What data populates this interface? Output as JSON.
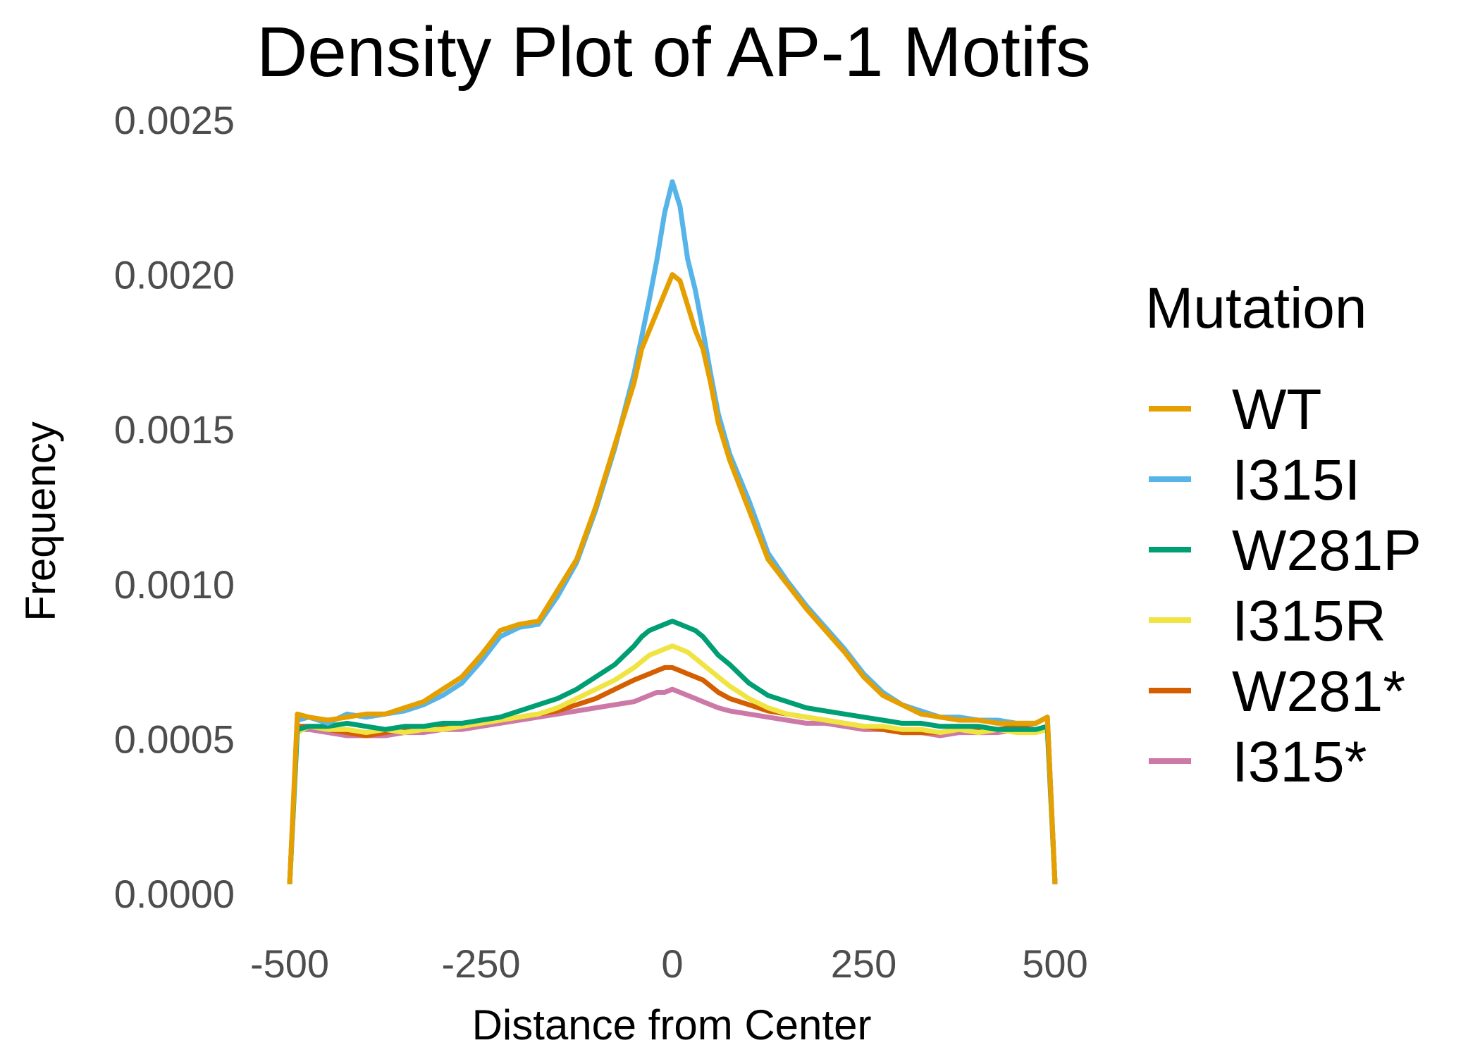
{
  "chart_data": {
    "type": "line",
    "title": "Density Plot of AP-1 Motifs",
    "xlabel": "Distance from Center",
    "ylabel": "Frequency",
    "xlim": [
      -500,
      500
    ],
    "ylim": [
      0,
      0.0025
    ],
    "x_ticks": [
      "-500",
      "-250",
      "0",
      "250",
      "500"
    ],
    "y_ticks": [
      "0.0000",
      "0.0005",
      "0.0010",
      "0.0015",
      "0.0020",
      "0.0025"
    ],
    "grid": false,
    "legend": {
      "title": "Mutation",
      "position": "right"
    },
    "x": [
      -500,
      -490,
      -475,
      -450,
      -425,
      -400,
      -375,
      -350,
      -325,
      -300,
      -275,
      -250,
      -225,
      -200,
      -175,
      -150,
      -125,
      -100,
      -75,
      -50,
      -40,
      -30,
      -20,
      -10,
      0,
      10,
      20,
      30,
      40,
      50,
      60,
      75,
      100,
      125,
      150,
      175,
      200,
      225,
      250,
      275,
      300,
      325,
      350,
      375,
      400,
      425,
      450,
      475,
      490,
      500
    ],
    "series": [
      {
        "name": "WT",
        "color": "#E69F00",
        "values": [
          3e-05,
          0.00058,
          0.00057,
          0.00056,
          0.00057,
          0.00058,
          0.00058,
          0.0006,
          0.00062,
          0.00066,
          0.0007,
          0.00077,
          0.00085,
          0.00087,
          0.00088,
          0.00098,
          0.00108,
          0.00125,
          0.00145,
          0.00165,
          0.00176,
          0.00182,
          0.00188,
          0.00194,
          0.002,
          0.00198,
          0.0019,
          0.00182,
          0.00176,
          0.00165,
          0.00152,
          0.0014,
          0.00124,
          0.00108,
          0.001,
          0.00092,
          0.00085,
          0.00078,
          0.0007,
          0.00064,
          0.00061,
          0.00058,
          0.00057,
          0.00056,
          0.00056,
          0.00055,
          0.00055,
          0.00055,
          0.00057,
          3e-05
        ]
      },
      {
        "name": "I315I",
        "color": "#56B4E9",
        "values": [
          3e-05,
          0.00056,
          0.00057,
          0.00055,
          0.00058,
          0.00057,
          0.00058,
          0.00059,
          0.00061,
          0.00064,
          0.00068,
          0.00075,
          0.00083,
          0.00086,
          0.00087,
          0.00096,
          0.00107,
          0.00124,
          0.00144,
          0.00168,
          0.0018,
          0.00192,
          0.00205,
          0.0022,
          0.0023,
          0.00222,
          0.00205,
          0.00195,
          0.00182,
          0.00168,
          0.00155,
          0.00142,
          0.00127,
          0.0011,
          0.00101,
          0.00093,
          0.00086,
          0.00079,
          0.00071,
          0.00065,
          0.00061,
          0.00059,
          0.00057,
          0.00057,
          0.00056,
          0.00056,
          0.00055,
          0.00055,
          0.00057,
          3e-05
        ]
      },
      {
        "name": "W281P",
        "color": "#009E73",
        "values": [
          3e-05,
          0.00053,
          0.00054,
          0.00054,
          0.00055,
          0.00054,
          0.00053,
          0.00054,
          0.00054,
          0.00055,
          0.00055,
          0.00056,
          0.00057,
          0.00059,
          0.00061,
          0.00063,
          0.00066,
          0.0007,
          0.00074,
          0.0008,
          0.00083,
          0.00085,
          0.00086,
          0.00087,
          0.00088,
          0.00087,
          0.00086,
          0.00085,
          0.00083,
          0.0008,
          0.00077,
          0.00074,
          0.00068,
          0.00064,
          0.00062,
          0.0006,
          0.00059,
          0.00058,
          0.00057,
          0.00056,
          0.00055,
          0.00055,
          0.00054,
          0.00054,
          0.00054,
          0.00053,
          0.00053,
          0.00053,
          0.00054,
          3e-05
        ]
      },
      {
        "name": "I315R",
        "color": "#F0E442",
        "values": [
          3e-05,
          0.00052,
          0.00054,
          0.00053,
          0.00053,
          0.00052,
          0.00053,
          0.00052,
          0.00053,
          0.00053,
          0.00054,
          0.00055,
          0.00056,
          0.00057,
          0.00058,
          0.0006,
          0.00063,
          0.00066,
          0.00069,
          0.00073,
          0.00075,
          0.00077,
          0.00078,
          0.00079,
          0.0008,
          0.00079,
          0.00078,
          0.00076,
          0.00074,
          0.00072,
          0.0007,
          0.00067,
          0.00063,
          0.0006,
          0.00058,
          0.00057,
          0.00056,
          0.00055,
          0.00054,
          0.00054,
          0.00053,
          0.00053,
          0.00052,
          0.00053,
          0.00052,
          0.00053,
          0.00052,
          0.00052,
          0.00053,
          3e-05
        ]
      },
      {
        "name": "W281*",
        "color": "#D55E00",
        "values": [
          3e-05,
          0.00054,
          0.00054,
          0.00053,
          0.00052,
          0.00051,
          0.00052,
          0.00053,
          0.00053,
          0.00054,
          0.00054,
          0.00055,
          0.00056,
          0.00057,
          0.00058,
          0.00059,
          0.00061,
          0.00063,
          0.00066,
          0.00069,
          0.0007,
          0.00071,
          0.00072,
          0.00073,
          0.00073,
          0.00072,
          0.00071,
          0.0007,
          0.00069,
          0.00067,
          0.00065,
          0.00063,
          0.00061,
          0.00059,
          0.00058,
          0.00057,
          0.00056,
          0.00055,
          0.00054,
          0.00053,
          0.00052,
          0.00052,
          0.00052,
          0.00053,
          0.00053,
          0.00053,
          0.00054,
          0.00055,
          0.00057,
          3e-05
        ]
      },
      {
        "name": "I315*",
        "color": "#CC79A7",
        "values": [
          3e-05,
          0.00053,
          0.00053,
          0.00052,
          0.00051,
          0.00051,
          0.00051,
          0.00052,
          0.00052,
          0.00053,
          0.00053,
          0.00054,
          0.00055,
          0.00056,
          0.00057,
          0.00058,
          0.00059,
          0.0006,
          0.00061,
          0.00062,
          0.00063,
          0.00064,
          0.00065,
          0.00065,
          0.00066,
          0.00065,
          0.00064,
          0.00063,
          0.00062,
          0.00061,
          0.0006,
          0.00059,
          0.00058,
          0.00057,
          0.00056,
          0.00055,
          0.00055,
          0.00054,
          0.00053,
          0.00053,
          0.00052,
          0.00052,
          0.00051,
          0.00052,
          0.00052,
          0.00052,
          0.00053,
          0.00053,
          0.00053,
          3e-05
        ]
      }
    ]
  }
}
